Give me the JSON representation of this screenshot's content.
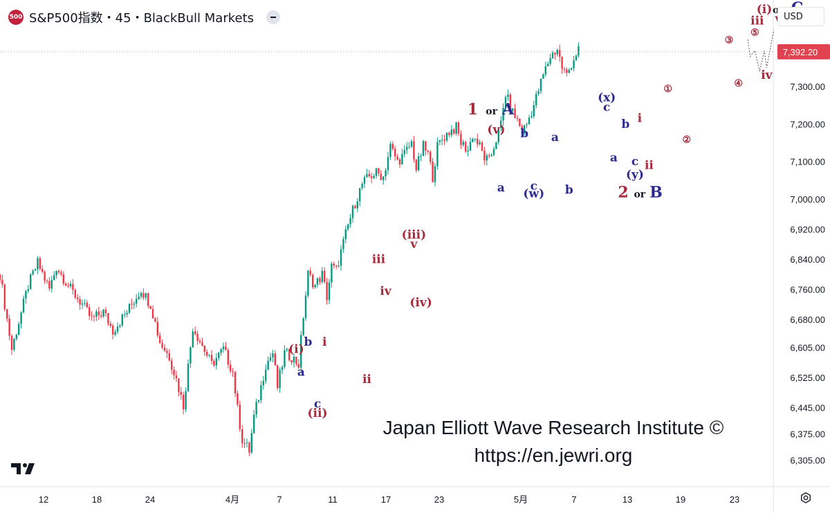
{
  "header": {
    "logo_text": "500",
    "title": "S&P500指数・45・BlackBull Markets"
  },
  "currency_selector": {
    "value": "USD"
  },
  "colors": {
    "up": "#089981",
    "down": "#f23645",
    "wave_red": "#a52a3c",
    "wave_blue": "#2c2a8e",
    "last_price": "#e0424f",
    "axis_text": "#131722"
  },
  "chart_data": {
    "type": "candlestick",
    "ylim": [
      6270,
      7500
    ],
    "y_ticks": [
      "7,300.00",
      "7,200.00",
      "7,100.00",
      "7,000.00",
      "6,920.00",
      "6,840.00",
      "6,760.00",
      "6,680.00",
      "6,605.00",
      "6,525.00",
      "6,445.00",
      "6,375.00",
      "6,305.00"
    ],
    "x_ticks": [
      "12",
      "18",
      "24",
      "4月",
      "7",
      "11",
      "17",
      "23",
      "5月",
      "7",
      "13",
      "19",
      "23"
    ],
    "last_price": {
      "value": 7392.2,
      "label": "7,392.20"
    },
    "grid": false,
    "price_path": [
      [
        0,
        6800
      ],
      [
        5,
        6600
      ],
      [
        12,
        6770
      ],
      [
        16,
        6830
      ],
      [
        21,
        6760
      ],
      [
        24,
        6820
      ],
      [
        30,
        6760
      ],
      [
        35,
        6720
      ],
      [
        39,
        6680
      ],
      [
        44,
        6700
      ],
      [
        48,
        6650
      ],
      [
        54,
        6700
      ],
      [
        60,
        6760
      ],
      [
        64,
        6720
      ],
      [
        68,
        6620
      ],
      [
        72,
        6580
      ],
      [
        75,
        6520
      ],
      [
        78,
        6450
      ],
      [
        82,
        6660
      ],
      [
        86,
        6610
      ],
      [
        90,
        6560
      ],
      [
        95,
        6600
      ],
      [
        99,
        6540
      ],
      [
        101,
        6440
      ],
      [
        103,
        6360
      ],
      [
        106,
        6330
      ],
      [
        108,
        6420
      ],
      [
        111,
        6500
      ],
      [
        113,
        6560
      ],
      [
        116,
        6590
      ],
      [
        118,
        6500
      ],
      [
        121,
        6590
      ],
      [
        124,
        6580
      ],
      [
        127,
        6560
      ],
      [
        129,
        6690
      ],
      [
        131,
        6800
      ],
      [
        134,
        6770
      ],
      [
        137,
        6800
      ],
      [
        139,
        6740
      ],
      [
        141,
        6820
      ],
      [
        143,
        6810
      ],
      [
        145,
        6860
      ],
      [
        148,
        6930
      ],
      [
        151,
        6990
      ],
      [
        154,
        7040
      ],
      [
        157,
        7060
      ],
      [
        160,
        7070
      ],
      [
        163,
        7060
      ],
      [
        166,
        7140
      ],
      [
        169,
        7100
      ],
      [
        172,
        7120
      ],
      [
        175,
        7150
      ],
      [
        177,
        7080
      ],
      [
        180,
        7140
      ],
      [
        182,
        7120
      ],
      [
        184,
        7060
      ],
      [
        186,
        7140
      ],
      [
        188,
        7160
      ],
      [
        191,
        7180
      ],
      [
        194,
        7190
      ],
      [
        196,
        7150
      ],
      [
        199,
        7130
      ],
      [
        201,
        7170
      ],
      [
        204,
        7140
      ],
      [
        206,
        7110
      ],
      [
        208,
        7100
      ],
      [
        211,
        7160
      ],
      [
        213,
        7200
      ],
      [
        215,
        7280
      ],
      [
        218,
        7230
      ],
      [
        220,
        7210
      ],
      [
        222,
        7180
      ],
      [
        224,
        7200
      ],
      [
        227,
        7250
      ],
      [
        229,
        7290
      ],
      [
        231,
        7330
      ],
      [
        234,
        7380
      ],
      [
        237,
        7400
      ],
      [
        239,
        7350
      ],
      [
        241,
        7330
      ],
      [
        243,
        7360
      ],
      [
        246,
        7400
      ]
    ],
    "wave_labels": [
      {
        "text": "1",
        "x": 201,
        "y": 7225,
        "color": "red",
        "size": "lg"
      },
      {
        "text": "or",
        "x": 209,
        "y": 7225,
        "color": "dark",
        "size": "sm"
      },
      {
        "text": "A",
        "x": 216,
        "y": 7225,
        "color": "blue",
        "size": "lg"
      },
      {
        "text": "(v)",
        "x": 211,
        "y": 7175,
        "color": "red",
        "size": "md"
      },
      {
        "text": "b",
        "x": 223,
        "y": 7165,
        "color": "blue",
        "size": "md"
      },
      {
        "text": "a",
        "x": 236,
        "y": 7155,
        "color": "blue",
        "size": "md"
      },
      {
        "text": "a",
        "x": 213,
        "y": 7020,
        "color": "blue",
        "size": "md"
      },
      {
        "text": "c",
        "x": 227,
        "y": 7025,
        "color": "blue",
        "size": "md"
      },
      {
        "text": "(w)",
        "x": 227,
        "y": 7005,
        "color": "blue",
        "size": "md"
      },
      {
        "text": "b",
        "x": 242,
        "y": 7015,
        "color": "blue",
        "size": "md"
      },
      {
        "text": "(x)",
        "x": 258,
        "y": 7260,
        "color": "blue",
        "size": "md"
      },
      {
        "text": "c",
        "x": 258,
        "y": 7235,
        "color": "blue",
        "size": "md"
      },
      {
        "text": "b",
        "x": 266,
        "y": 7190,
        "color": "blue",
        "size": "md"
      },
      {
        "text": "i",
        "x": 272,
        "y": 7205,
        "color": "red",
        "size": "md"
      },
      {
        "text": "a",
        "x": 261,
        "y": 7100,
        "color": "blue",
        "size": "md"
      },
      {
        "text": "c",
        "x": 270,
        "y": 7090,
        "color": "blue",
        "size": "md"
      },
      {
        "text": "ii",
        "x": 276,
        "y": 7080,
        "color": "red",
        "size": "md"
      },
      {
        "text": "(y)",
        "x": 270,
        "y": 7055,
        "color": "blue",
        "size": "md"
      },
      {
        "text": "2",
        "x": 265,
        "y": 7005,
        "color": "red",
        "size": "lg"
      },
      {
        "text": "or",
        "x": 272,
        "y": 7005,
        "color": "dark",
        "size": "sm"
      },
      {
        "text": "B",
        "x": 279,
        "y": 7005,
        "color": "blue",
        "size": "lg"
      },
      {
        "text": "①",
        "x": 284,
        "y": 7285,
        "color": "red",
        "size": "sm"
      },
      {
        "text": "②",
        "x": 292,
        "y": 7150,
        "color": "red",
        "size": "sm"
      },
      {
        "text": "③",
        "x": 310,
        "y": 7415,
        "color": "red",
        "size": "sm"
      },
      {
        "text": "④",
        "x": 314,
        "y": 7300,
        "color": "red",
        "size": "sm"
      },
      {
        "text": "⑤",
        "x": 321,
        "y": 7435,
        "color": "red",
        "size": "sm"
      },
      {
        "text": "(i)",
        "x": 325,
        "y": 7495,
        "color": "red",
        "size": "md"
      },
      {
        "text": "or",
        "x": 331,
        "y": 7495,
        "color": "dark",
        "size": "sm"
      },
      {
        "text": "C",
        "x": 339,
        "y": 7495,
        "color": "blue",
        "size": "lg"
      },
      {
        "text": "iii",
        "x": 322,
        "y": 7465,
        "color": "red",
        "size": "md"
      },
      {
        "text": "v",
        "x": 331,
        "y": 7470,
        "color": "red",
        "size": "md"
      },
      {
        "text": "iv",
        "x": 326,
        "y": 7320,
        "color": "red",
        "size": "md"
      },
      {
        "text": "(iii)",
        "x": 176,
        "y": 6895,
        "color": "red",
        "size": "md"
      },
      {
        "text": "v",
        "x": 176,
        "y": 6870,
        "color": "red",
        "size": "md"
      },
      {
        "text": "iii",
        "x": 161,
        "y": 6830,
        "color": "red",
        "size": "md"
      },
      {
        "text": "iv",
        "x": 164,
        "y": 6745,
        "color": "red",
        "size": "md"
      },
      {
        "text": "(iv)",
        "x": 179,
        "y": 6715,
        "color": "red",
        "size": "md"
      },
      {
        "text": "(i)",
        "x": 126,
        "y": 6590,
        "color": "red",
        "size": "md"
      },
      {
        "text": "b",
        "x": 131,
        "y": 6610,
        "color": "blue",
        "size": "md"
      },
      {
        "text": "i",
        "x": 138,
        "y": 6610,
        "color": "red",
        "size": "md"
      },
      {
        "text": "a",
        "x": 128,
        "y": 6530,
        "color": "blue",
        "size": "md"
      },
      {
        "text": "ii",
        "x": 156,
        "y": 6510,
        "color": "red",
        "size": "md"
      },
      {
        "text": "c",
        "x": 135,
        "y": 6445,
        "color": "blue",
        "size": "md"
      },
      {
        "text": "(ii)",
        "x": 135,
        "y": 6420,
        "color": "red",
        "size": "md"
      }
    ],
    "projection": [
      [
        318,
        7425
      ],
      [
        319,
        7380
      ],
      [
        321,
        7395
      ],
      [
        323,
        7340
      ],
      [
        325,
        7395
      ],
      [
        326,
        7350
      ],
      [
        329,
        7450
      ]
    ]
  },
  "watermark": {
    "line1": "Japan Elliott Wave Research Institute ©",
    "line2": "https://en.jewri.org"
  }
}
